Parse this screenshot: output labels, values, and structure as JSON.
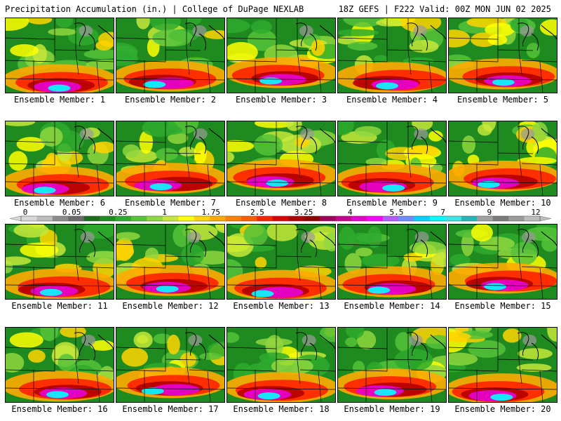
{
  "header": {
    "title": "Precipitation Accumulation (in.) | College of DuPage NEXLAB",
    "run_info": "18Z GEFS | F222 Valid: 00Z MON JUN 02 2025"
  },
  "panels": [
    {
      "label": "Ensemble Member: 1"
    },
    {
      "label": "Ensemble Member: 2"
    },
    {
      "label": "Ensemble Member: 3"
    },
    {
      "label": "Ensemble Member: 4"
    },
    {
      "label": "Ensemble Member: 5"
    },
    {
      "label": "Ensemble Member: 6"
    },
    {
      "label": "Ensemble Member: 7"
    },
    {
      "label": "Ensemble Member: 8"
    },
    {
      "label": "Ensemble Member: 9"
    },
    {
      "label": "Ensemble Member: 10"
    },
    {
      "label": "Ensemble Member: 11"
    },
    {
      "label": "Ensemble Member: 12"
    },
    {
      "label": "Ensemble Member: 13"
    },
    {
      "label": "Ensemble Member: 14"
    },
    {
      "label": "Ensemble Member: 15"
    },
    {
      "label": "Ensemble Member: 16"
    },
    {
      "label": "Ensemble Member: 17"
    },
    {
      "label": "Ensemble Member: 18"
    },
    {
      "label": "Ensemble Member: 19"
    },
    {
      "label": "Ensemble Member: 20"
    }
  ],
  "colorbar": {
    "labels": [
      "0",
      "0.05",
      "0.25",
      "1",
      "1.75",
      "2.5",
      "3.25",
      "4",
      "5.5",
      "7",
      "9",
      "12"
    ],
    "colors": [
      "#d9d9d9",
      "#bdbdbd",
      "#8c8c8c",
      "#6b6b6b",
      "#1d6b1d",
      "#1f8a1f",
      "#2eaa2e",
      "#56c23a",
      "#8fd63f",
      "#c6e83a",
      "#ffff00",
      "#ffd400",
      "#ffaa00",
      "#ff8000",
      "#ff5a00",
      "#ff2200",
      "#e00000",
      "#b40000",
      "#8c0000",
      "#a0005a",
      "#c8008c",
      "#e600c8",
      "#ff00ff",
      "#b45aff",
      "#6e8cff",
      "#00d2ff",
      "#00ffff",
      "#3ce6e6",
      "#28b4b4",
      "#a0a0a0",
      "#7a7a7a",
      "#9a9a9a",
      "#bdbdbd"
    ]
  }
}
